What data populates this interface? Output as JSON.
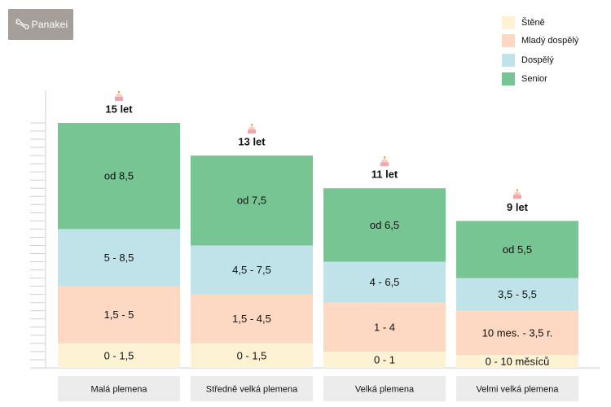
{
  "brand": {
    "logo_text": "Panakei",
    "logo_bg": "#a69f99"
  },
  "chart_data": {
    "type": "bar",
    "stacked": true,
    "title": "",
    "xlabel": "",
    "ylabel": "",
    "ylim": [
      0,
      15
    ],
    "grid": false,
    "legend_position": "top-right",
    "categories": [
      "Malá plemena",
      "Středně velká plemena",
      "Velká plemena",
      "Velmi velká plemena"
    ],
    "series": [
      {
        "name": "Štěně",
        "color": "#fdf3d4",
        "values": [
          1.5,
          1.5,
          1,
          0.8
        ],
        "labels": [
          "0 - 1,5",
          "0 - 1,5",
          "0 - 1",
          "0 - 10 měsíců"
        ]
      },
      {
        "name": "Mladý dospělý",
        "color": "#fdd8c2",
        "values": [
          3.5,
          3,
          3,
          2.7
        ],
        "labels": [
          "1,5 - 5",
          "1,5 - 4,5",
          "1 - 4",
          "10 mes. - 3,5 r."
        ]
      },
      {
        "name": "Dospělý",
        "color": "#bfe3e8",
        "values": [
          3.5,
          3,
          2.5,
          2
        ],
        "labels": [
          "5 - 8,5",
          "4,5 - 7,5",
          "4 - 6,5",
          "3,5 - 5,5"
        ]
      },
      {
        "name": "Senior",
        "color": "#77c593",
        "values": [
          6.5,
          5.5,
          4.5,
          3.5
        ],
        "labels": [
          "od 8,5",
          "od 7,5",
          "od 6,5",
          "od 5,5"
        ]
      }
    ],
    "totals": [
      15,
      13,
      11,
      9
    ],
    "total_labels": [
      "15 let",
      "13 let",
      "11 let",
      "9 let"
    ],
    "annotation_icon": "birthday-cake-icon",
    "category_box_color": "#ececec",
    "axis_color": "#cfcfcf"
  }
}
